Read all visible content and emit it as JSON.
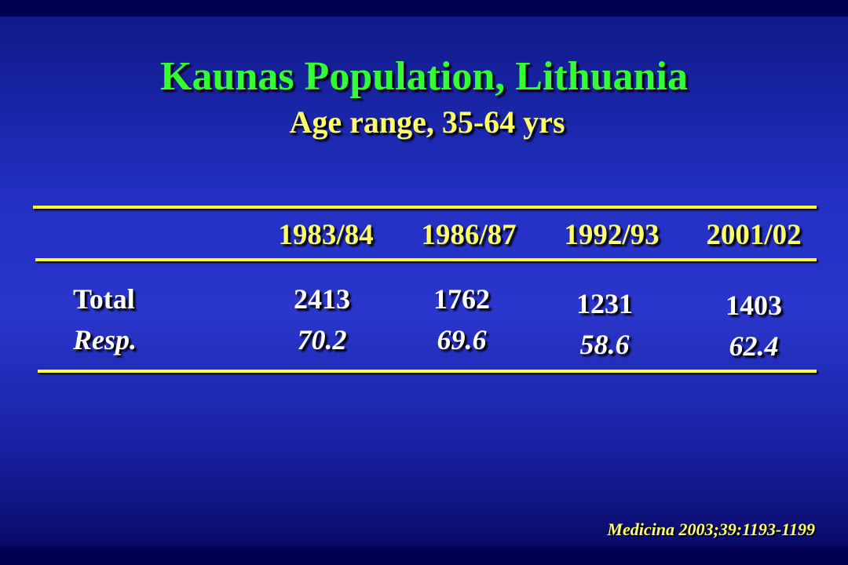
{
  "header": {
    "title": "Kaunas Population, Lithuania",
    "subtitle": "Age range, 35-64 yrs"
  },
  "table": {
    "columns": [
      "1983/84",
      "1986/87",
      "1992/93",
      "2001/02"
    ],
    "rows": [
      {
        "label": "Total",
        "values": [
          2413,
          1762,
          1231,
          1403
        ]
      },
      {
        "label": "Resp.",
        "values": [
          70.2,
          69.6,
          58.6,
          62.4
        ]
      }
    ]
  },
  "footer": {
    "citation": "Medicina 2003;39:1193-1199"
  }
}
